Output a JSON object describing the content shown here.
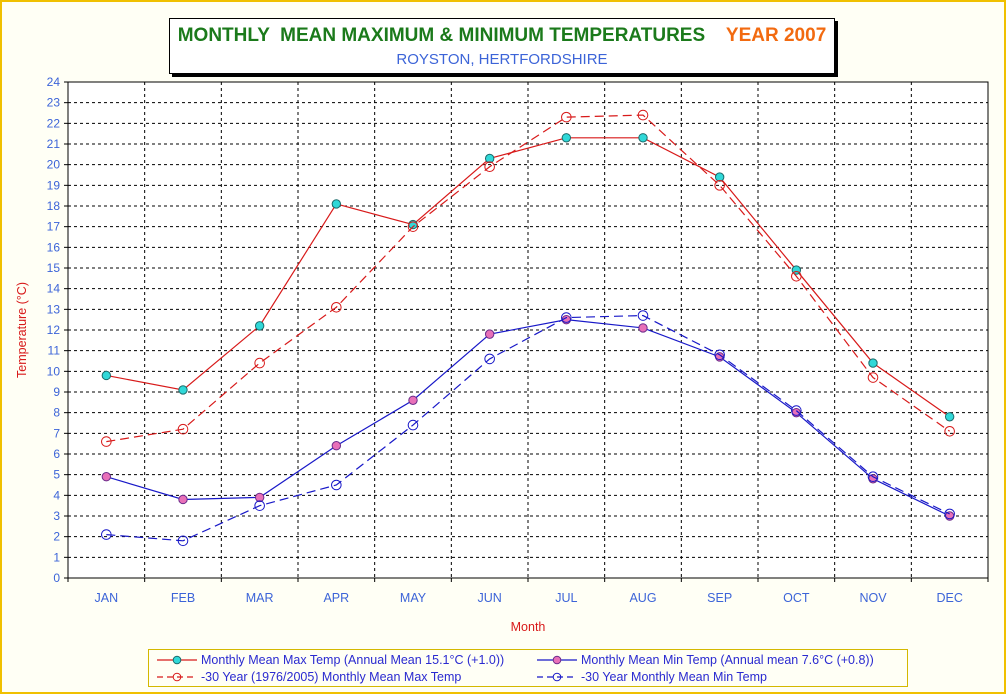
{
  "colors": {
    "max": "#d81a1a",
    "min": "#1818c8",
    "max_marker": "#30d8d8",
    "min_marker": "#e870b8",
    "axis_text": "#3c64d8",
    "ylabel": "#d81a1a"
  },
  "chart_data": {
    "type": "line",
    "title": "MONTHLY  MEAN MAXIMUM & MINIMUM TEMPERATURES",
    "title_year": "YEAR 2007",
    "subtitle": "ROYSTON, HERTFORDSHIRE",
    "xlabel": "Month",
    "ylabel": "Temperature (°C)",
    "ylim": [
      0,
      24
    ],
    "ytick_step": 1,
    "grid": true,
    "legend_position": "bottom",
    "categories": [
      "JAN",
      "FEB",
      "MAR",
      "APR",
      "MAY",
      "JUN",
      "JUL",
      "AUG",
      "SEP",
      "OCT",
      "NOV",
      "DEC"
    ],
    "series": [
      {
        "name": "Monthly Mean Max Temp (Annual Mean 15.1°C (+1.0))",
        "key": "max",
        "style": "solid",
        "marker": "filled",
        "values": [
          9.8,
          9.1,
          12.2,
          18.1,
          17.1,
          20.3,
          21.3,
          21.3,
          19.4,
          14.9,
          10.4,
          7.8
        ]
      },
      {
        "name": "Monthly Mean Min Temp (Annual mean 7.6°C (+0.8))",
        "key": "min",
        "style": "solid",
        "marker": "filled",
        "values": [
          4.9,
          3.8,
          3.9,
          6.4,
          8.6,
          11.8,
          12.5,
          12.1,
          10.7,
          8.0,
          4.8,
          3.0
        ]
      },
      {
        "name": "30 Year (1976/2005) Monthly Mean Max Temp",
        "key": "max",
        "style": "dashed",
        "marker": "hollow",
        "values": [
          6.6,
          7.2,
          10.4,
          13.1,
          17.0,
          19.9,
          22.3,
          22.4,
          19.0,
          14.6,
          9.7,
          7.1
        ]
      },
      {
        "name": "30 Year Monthly Mean Min Temp",
        "key": "min",
        "style": "dashed",
        "marker": "hollow",
        "values": [
          2.1,
          1.8,
          3.5,
          4.5,
          7.4,
          10.6,
          12.6,
          12.7,
          10.8,
          8.1,
          4.9,
          3.1
        ]
      }
    ]
  }
}
